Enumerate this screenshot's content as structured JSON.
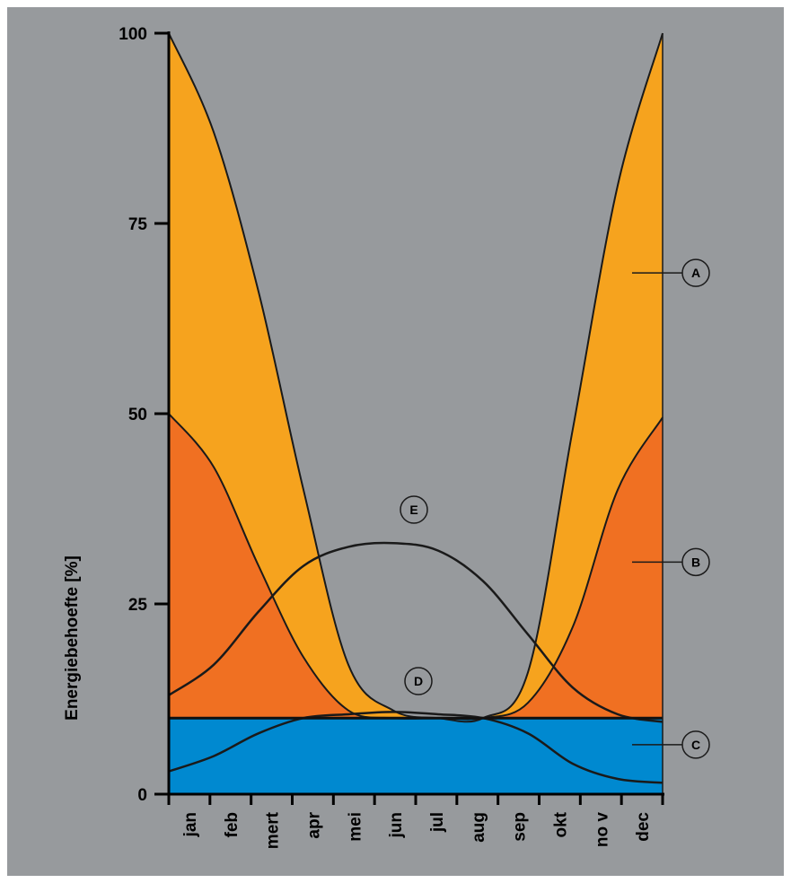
{
  "chart_data": {
    "type": "area",
    "title": "",
    "ylabel": "Energiebehoefte [%]",
    "xlabel": "",
    "ylim": [
      0,
      100
    ],
    "yticks": [
      0,
      25,
      50,
      75,
      100
    ],
    "categories": [
      "jan",
      "feb",
      "mert",
      "apr",
      "mei",
      "jun",
      "jul",
      "aug",
      "sep",
      "okt",
      "no v",
      "dec"
    ],
    "series": [
      {
        "name": "A",
        "color": "#f6a31e",
        "values": [
          100,
          87,
          66,
          40,
          17,
          11,
          10,
          10,
          16,
          48,
          80,
          100
        ]
      },
      {
        "name": "B",
        "color": "#f07022",
        "values": [
          50,
          43,
          30,
          18,
          11,
          10,
          10,
          10,
          12,
          22,
          40,
          49.5
        ]
      },
      {
        "name": "C",
        "color": "#0089d0",
        "values": [
          10,
          10,
          10,
          10,
          10,
          10,
          10,
          10,
          10,
          10,
          10,
          10
        ]
      },
      {
        "name": "D",
        "color": "#000000",
        "values": [
          3,
          5,
          8,
          10,
          10.5,
          10.8,
          10.5,
          10,
          8,
          4,
          2,
          1.5
        ]
      },
      {
        "name": "E",
        "color": "#000000",
        "values": [
          13,
          17,
          24,
          30,
          32.5,
          33,
          32,
          28,
          21,
          14,
          10.5,
          9.5
        ]
      }
    ]
  }
}
